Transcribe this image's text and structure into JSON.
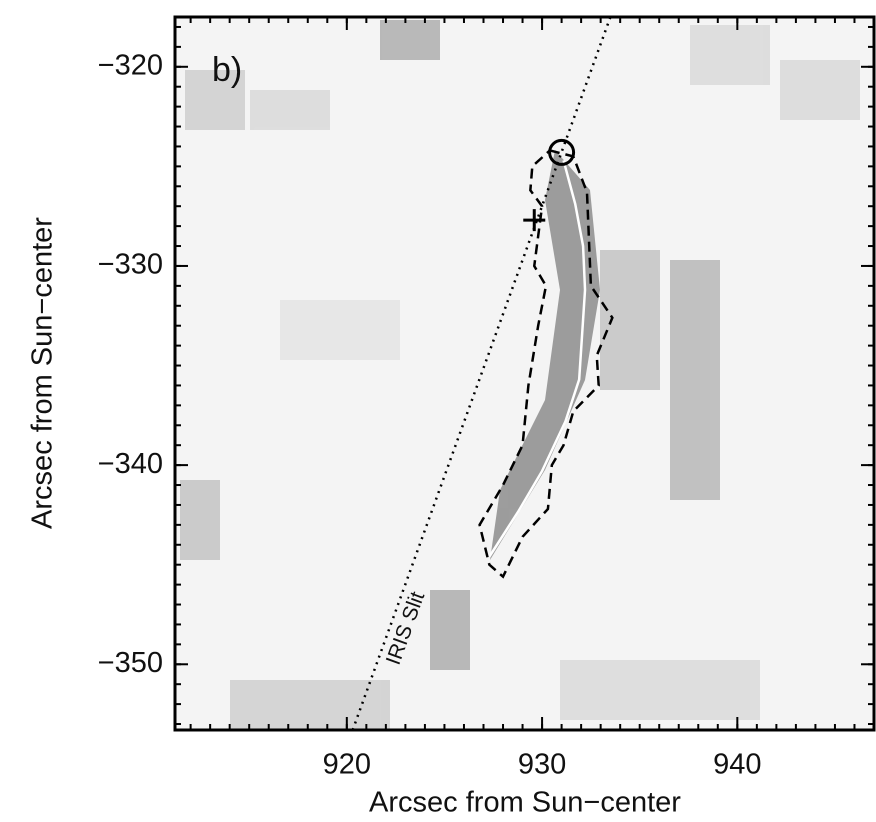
{
  "chart_data": {
    "type": "image",
    "panel_label": "b)",
    "xlabel": "Arcsec from Sun−center",
    "ylabel": "Arcsec from Sun−center",
    "xlim": [
      911.2,
      947
    ],
    "ylim": [
      -353.3,
      -317.5
    ],
    "xticks": [
      920,
      930,
      940
    ],
    "yticks": [
      {
        "value": -320,
        "label": "−320"
      },
      {
        "value": -330,
        "label": "−330"
      },
      {
        "value": -340,
        "label": "−340"
      },
      {
        "value": -350,
        "label": "−350"
      }
    ],
    "series": [
      {
        "name": "IRIS Slit",
        "color": "#000000",
        "style": "dotted",
        "x": [
          920.3,
          933.5
        ],
        "y": [
          -353.3,
          -317.5
        ]
      },
      {
        "color": "#ffffff",
        "style": "solid",
        "x": [
          927.3,
          928.8,
          930.0,
          931.2,
          931.9,
          932.2,
          932.1,
          931.7,
          931.1
        ],
        "y": [
          -344.6,
          -342.3,
          -340.3,
          -337.8,
          -335.7,
          -331.2,
          -329.0,
          -326.9,
          -324.7
        ]
      },
      {
        "color": "#000000",
        "style": "dashed",
        "x": [
          930.4,
          931.6,
          932.3,
          932.5,
          933.6,
          932.8,
          932.9,
          931.6,
          931.1,
          930.5,
          930.3,
          929.0,
          928.0,
          927.3,
          926.8,
          928.0,
          929.0,
          929.3,
          929.8,
          930.2,
          929.6,
          930.0,
          929.4,
          929.5,
          930.4
        ],
        "y": [
          -324.2,
          -324.5,
          -326.3,
          -331.0,
          -332.6,
          -334.5,
          -336.0,
          -337.3,
          -339.0,
          -340.0,
          -342.2,
          -343.6,
          -345.6,
          -345.0,
          -343.0,
          -341.0,
          -339.0,
          -336.0,
          -333.0,
          -331.0,
          -330.0,
          -327.0,
          -326.2,
          -325.0,
          -324.2
        ]
      }
    ],
    "markers": [
      {
        "shape": "circle",
        "x": 931.0,
        "y": -324.3
      },
      {
        "shape": "plus",
        "x": 929.6,
        "y": -327.7
      }
    ]
  }
}
